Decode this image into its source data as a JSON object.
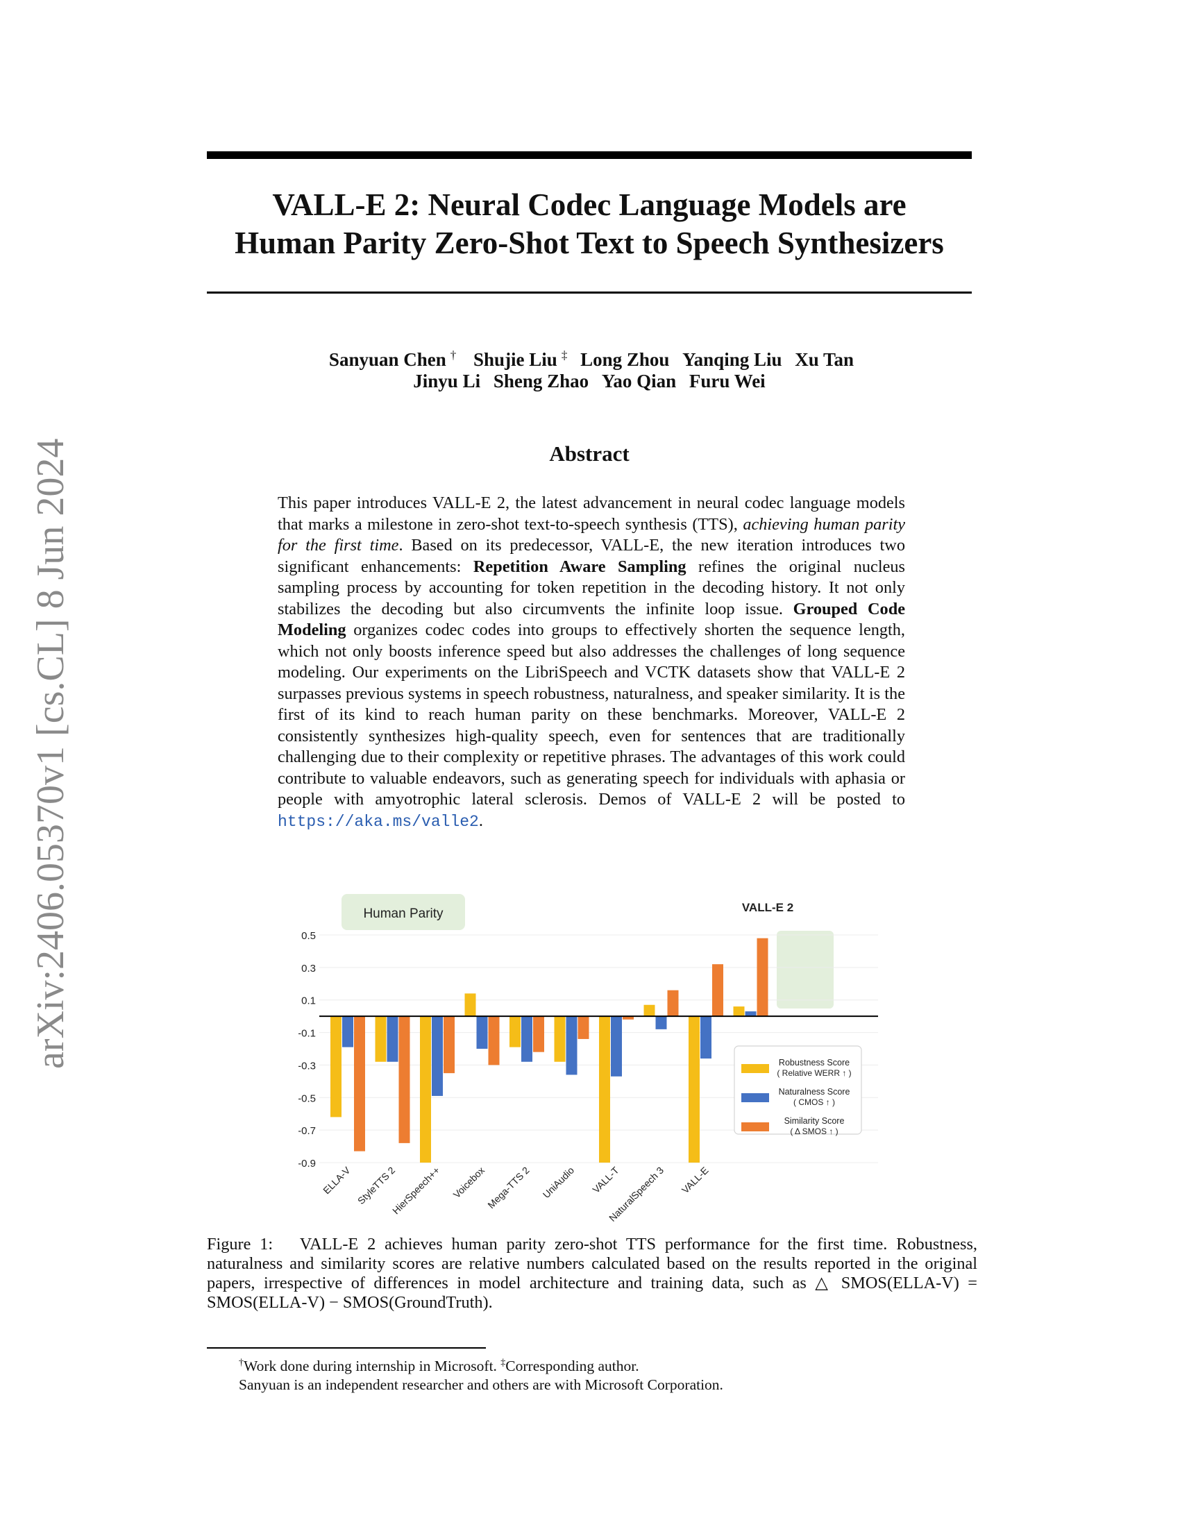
{
  "arxiv_id": "arXiv:2406.05370v1  [cs.CL]  8 Jun 2024",
  "title_line1": "VALL-E 2: Neural Codec Language Models are",
  "title_line2": "Human Parity Zero-Shot Text to Speech Synthesizers",
  "authors_line1": [
    {
      "name": "Sanyuan Chen",
      "mark": "†"
    },
    {
      "name": "Shujie Liu",
      "mark": "‡"
    },
    {
      "name": "Long Zhou",
      "mark": ""
    },
    {
      "name": "Yanqing Liu",
      "mark": ""
    },
    {
      "name": "Xu Tan",
      "mark": ""
    }
  ],
  "authors_line2": [
    "Jinyu Li",
    "Sheng Zhao",
    "Yao Qian",
    "Furu Wei"
  ],
  "abstract_heading": "Abstract",
  "abstract": {
    "p1": "This paper introduces VALL-E 2, the latest advancement in neural codec language models that marks a milestone in zero-shot text-to-speech synthesis (TTS), ",
    "p1_em": "achieving human parity for the first time",
    "p2": ". Based on its predecessor, VALL-E, the new iteration introduces two significant enhancements: ",
    "b1": "Repetition Aware Sampling",
    "p3": " refines the original nucleus sampling process by accounting for token repetition in the decoding history. It not only stabilizes the decoding but also circumvents the infinite loop issue. ",
    "b2": "Grouped Code Modeling",
    "p4": " organizes codec codes into groups to effectively shorten the sequence length, which not only boosts inference speed but also addresses the challenges of long sequence modeling. Our experiments on the LibriSpeech and VCTK datasets show that VALL-E 2 surpasses previous systems in speech robustness, naturalness, and speaker similarity. It is the first of its kind to reach human parity on these benchmarks. Moreover, VALL-E 2 consistently synthesizes high-quality speech, even for sentences that are traditionally challenging due to their complexity or repetitive phrases. The advantages of this work could contribute to valuable endeavors, such as generating speech for individuals with aphasia or people with amyotrophic lateral sclerosis. Demos of VALL-E 2 will be posted to ",
    "link": "https://aka.ms/valle2",
    "p5": "."
  },
  "chart_data": {
    "type": "bar",
    "badges": [
      "Human Parity",
      "VALL-E 2"
    ],
    "categories": [
      "ELLA-V",
      "StyleTTS 2",
      "HierSpeech++",
      "Voicebox",
      "Mega-TTS 2",
      "UniAudio",
      "VALL-T",
      "NaturalSpeech 3",
      "VALL-E",
      "VALL-E 2"
    ],
    "category_labels_shown": [
      "ELLA-V",
      "StyleTTS 2",
      "HierSpeech++",
      "Voicebox",
      "Mega-TTS 2",
      "UniAudio",
      "VALL-T",
      "NaturalSpeech 3",
      "VALL-E",
      ""
    ],
    "yticks": [
      "0.5",
      "0.3",
      "0.1",
      "-0.1",
      "-0.3",
      "-0.5",
      "-0.7",
      "-0.9"
    ],
    "ylim": [
      -0.9,
      0.5
    ],
    "grid": true,
    "legend_position": "bottom-right",
    "series": [
      {
        "name": "Robustness Score",
        "sub": "( Relative WERR ↑ )",
        "color": "#f5bd18",
        "values": [
          -0.62,
          -0.28,
          -0.9,
          0.14,
          -0.19,
          -0.28,
          -0.9,
          0.07,
          -0.9,
          0.06
        ]
      },
      {
        "name": "Naturalness Score",
        "sub": "( CMOS ↑ )",
        "color": "#4472c4",
        "values": [
          -0.19,
          -0.28,
          -0.49,
          -0.2,
          -0.28,
          -0.36,
          -0.37,
          -0.08,
          -0.26,
          0.03
        ]
      },
      {
        "name": "Similarity Score",
        "sub": "( Δ SMOS ↑ )",
        "color": "#ed7d31",
        "values": [
          -0.83,
          -0.78,
          -0.35,
          -0.3,
          -0.22,
          -0.14,
          -0.02,
          0.16,
          0.32,
          0.48
        ]
      }
    ]
  },
  "caption": {
    "label": "Figure 1:",
    "text": "VALL-E 2 achieves human parity zero-shot TTS performance for the first time. Robustness, naturalness and similarity scores are relative numbers calculated based on the results reported in the original papers, irrespective of differences in model architecture and training data, such as △ SMOS(ELLA-V) = SMOS(ELLA-V) − SMOS(GroundTruth)."
  },
  "footnotes": {
    "line1_a": "Work done during internship in Microsoft. ",
    "line1_b": "Corresponding author.",
    "line2": "Sanyuan is an independent researcher and others are with Microsoft Corporation."
  }
}
